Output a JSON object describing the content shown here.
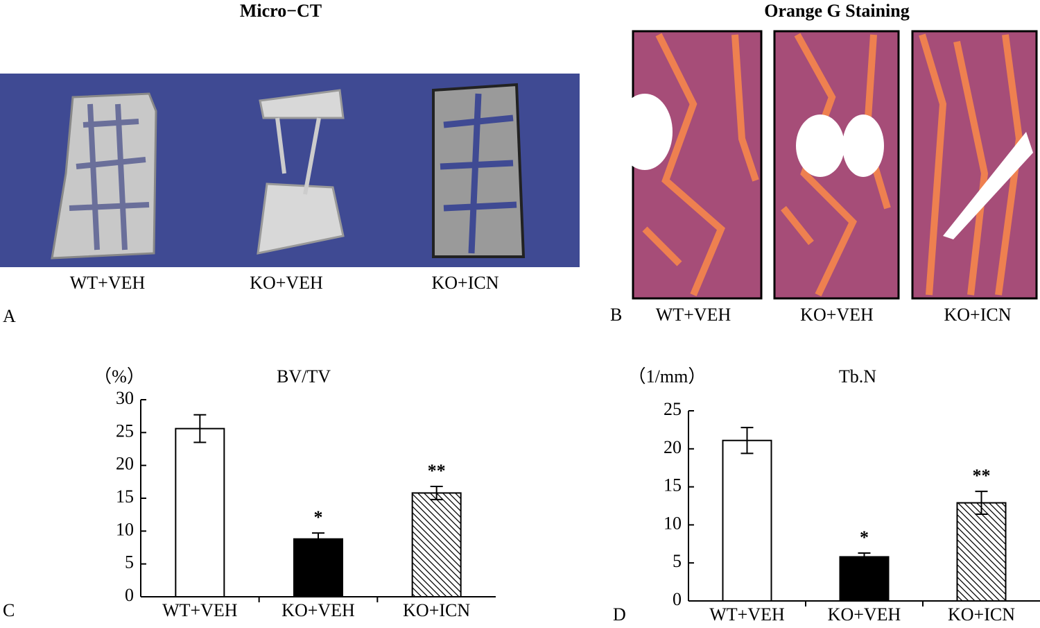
{
  "panel_a": {
    "letter": "A",
    "title": "Micro−CT",
    "labels": [
      "WT+VEH",
      "KO+VEH",
      "KO+ICN"
    ]
  },
  "panel_b": {
    "letter": "B",
    "title": "Orange G Staining",
    "labels": [
      "WT+VEH",
      "KO+VEH",
      "KO+ICN"
    ]
  },
  "chart_data": [
    {
      "type": "bar",
      "letter": "C",
      "title": "BV/TV",
      "y_label": "（%）",
      "categories": [
        "WT+VEH",
        "KO+VEH",
        "KO+ICN"
      ],
      "values": [
        25.6,
        8.8,
        15.8
      ],
      "errors": [
        2.1,
        0.9,
        1.0
      ],
      "annotations": [
        null,
        "*",
        "**"
      ],
      "colors": [
        "#ffffff",
        "#000000",
        "#ffffff"
      ],
      "patterns": [
        "solid",
        "solid",
        "hatch"
      ],
      "ylim": [
        0,
        30
      ],
      "yticks": [
        0,
        5,
        10,
        15,
        20,
        25,
        30
      ]
    },
    {
      "type": "bar",
      "letter": "D",
      "title": "Tb.N",
      "y_label": "（1/mm）",
      "categories": [
        "WT+VEH",
        "KO+VEH",
        "KO+ICN"
      ],
      "values": [
        21.1,
        5.8,
        12.9
      ],
      "errors": [
        1.7,
        0.5,
        1.5
      ],
      "annotations": [
        null,
        "*",
        "**"
      ],
      "colors": [
        "#ffffff",
        "#000000",
        "#ffffff"
      ],
      "patterns": [
        "solid",
        "solid",
        "hatch"
      ],
      "ylim": [
        0,
        25
      ],
      "yticks": [
        0,
        5,
        10,
        15,
        20,
        25
      ]
    }
  ]
}
